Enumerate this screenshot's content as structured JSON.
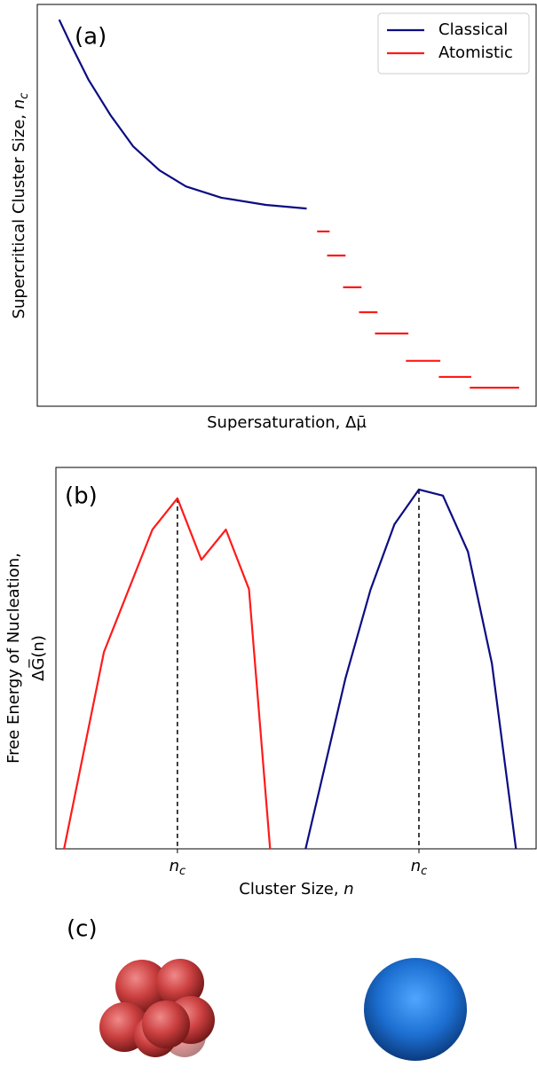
{
  "chart_data": [
    {
      "type": "line",
      "panel_label": "(a)",
      "x_label": "Supersaturation, Δμ̄",
      "y_label": "Supercritical Cluster Size, nc",
      "xlim": [
        0,
        100
      ],
      "ylim": [
        0,
        100
      ],
      "legend": "upper right",
      "series": [
        {
          "name": "Classical",
          "color": "#0c0c82",
          "style": "line",
          "x": [
            4.4,
            6.7,
            10.3,
            14.7,
            19.2,
            24.5,
            29.8,
            36.9,
            45.8,
            54.0
          ],
          "values": [
            96.2,
            90.1,
            81.2,
            72.4,
            64.7,
            58.7,
            54.7,
            51.9,
            50.1,
            49.2
          ]
        },
        {
          "name": "Atomistic",
          "color": "#ff1a1a",
          "style": "steps",
          "x": [
            56.1,
            58.1,
            61.3,
            64.5,
            67.7,
            73.9,
            80.5,
            86.7
          ],
          "x_end": [
            58.6,
            61.8,
            65.0,
            68.2,
            74.4,
            80.8,
            87.0,
            96.6
          ],
          "values": [
            43.5,
            37.5,
            29.6,
            23.4,
            18.1,
            11.3,
            7.3,
            4.6
          ]
        }
      ]
    },
    {
      "type": "line",
      "panel_label": "(b)",
      "x_label": "Cluster Size, n",
      "y_label": [
        "Free Energy of Nucleation,",
        "ΔG̅(n)"
      ],
      "xlim": [
        0,
        100
      ],
      "ylim": [
        0,
        100
      ],
      "xticks": [
        {
          "value": 25.3,
          "label": "nc",
          "color": "#ff1a1a"
        },
        {
          "value": 75.6,
          "label": "nc",
          "color": "#1a1aff"
        }
      ],
      "series": [
        {
          "color": "#ff1a1a",
          "style": "line",
          "x": [
            1.7,
            10.0,
            20.1,
            25.3,
            30.3,
            35.4,
            40.2,
            44.6
          ],
          "values": [
            0,
            51.6,
            83.7,
            91.9,
            75.8,
            83.7,
            68.1,
            0
          ]
        },
        {
          "color": "#0c0c82",
          "style": "line",
          "x": [
            52.0,
            60.3,
            65.5,
            70.5,
            75.6,
            80.6,
            85.8,
            90.8,
            95.8
          ],
          "values": [
            0,
            44.7,
            67.9,
            85.1,
            94.2,
            92.6,
            77.9,
            48.6,
            0
          ]
        }
      ]
    }
  ],
  "panel_c": {
    "label": "(c)"
  }
}
